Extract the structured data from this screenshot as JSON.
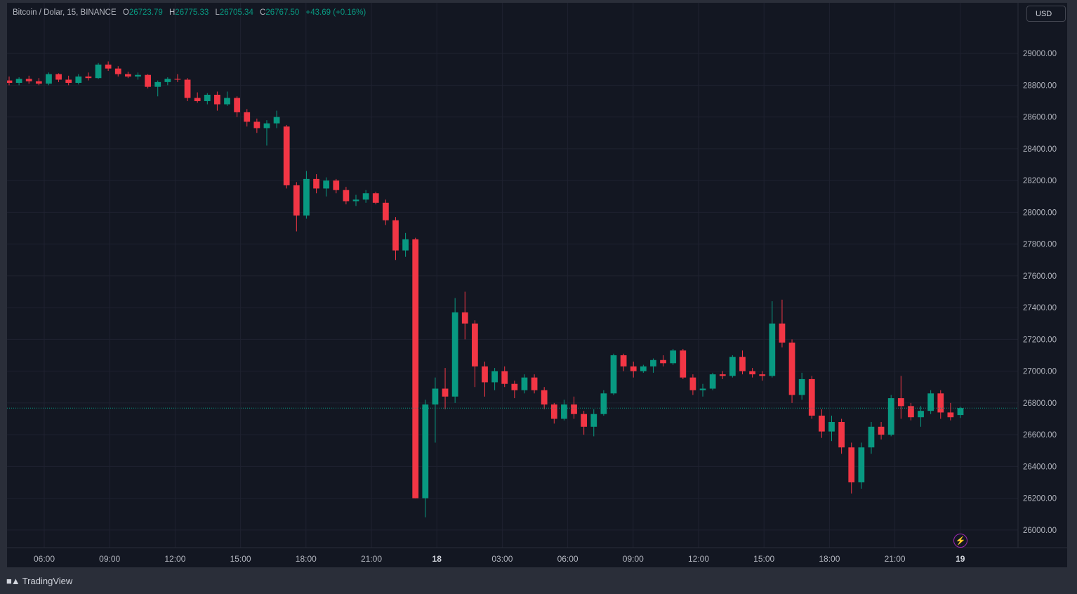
{
  "legend": {
    "symbol": "Bitcoin / Dolar, 15, BINANCE",
    "o_label": "O",
    "o_value": "26723.79",
    "h_label": "H",
    "h_value": "26775.33",
    "l_label": "L",
    "l_value": "26705.34",
    "c_label": "C",
    "c_value": "26767.50",
    "change": "+43.69 (+0.16%)"
  },
  "currency_button": "USD",
  "logo_text": "TradingView",
  "colors": {
    "up": "#089981",
    "down": "#f23645",
    "background": "#131722",
    "grid": "#1f2230",
    "axis_text": "#b2b5be"
  },
  "chart_data": {
    "type": "candlestick",
    "title": "Bitcoin / Dolar, 15, BINANCE",
    "interval": "15",
    "y_ticks": [
      "29000.00",
      "28800.00",
      "28600.00",
      "28400.00",
      "28200.00",
      "28000.00",
      "27800.00",
      "27600.00",
      "27400.00",
      "27200.00",
      "27000.00",
      "26800.00",
      "26600.00",
      "26400.00",
      "26200.00",
      "26000.00"
    ],
    "x_ticks": [
      "06:00",
      "09:00",
      "12:00",
      "15:00",
      "18:00",
      "21:00",
      "18",
      "03:00",
      "06:00",
      "09:00",
      "12:00",
      "15:00",
      "18:00",
      "21:00",
      "19"
    ],
    "ylim": [
      25820,
      29150
    ],
    "last_price": 26767.5,
    "grid": true,
    "candles": [
      {
        "t": "04:00",
        "o": 28830,
        "h": 28855,
        "l": 28800,
        "c": 28815
      },
      {
        "t": "04:30",
        "o": 28815,
        "h": 28850,
        "l": 28800,
        "c": 28840
      },
      {
        "t": "05:00",
        "o": 28840,
        "h": 28860,
        "l": 28810,
        "c": 28825
      },
      {
        "t": "05:30",
        "o": 28825,
        "h": 28845,
        "l": 28800,
        "c": 28810
      },
      {
        "t": "06:00",
        "o": 28810,
        "h": 28880,
        "l": 28800,
        "c": 28870
      },
      {
        "t": "06:30",
        "o": 28870,
        "h": 28875,
        "l": 28820,
        "c": 28835
      },
      {
        "t": "07:00",
        "o": 28835,
        "h": 28860,
        "l": 28800,
        "c": 28815
      },
      {
        "t": "07:30",
        "o": 28815,
        "h": 28870,
        "l": 28805,
        "c": 28855
      },
      {
        "t": "08:00",
        "o": 28855,
        "h": 28880,
        "l": 28830,
        "c": 28845
      },
      {
        "t": "08:30",
        "o": 28845,
        "h": 28940,
        "l": 28840,
        "c": 28930
      },
      {
        "t": "09:00",
        "o": 28930,
        "h": 28950,
        "l": 28890,
        "c": 28905
      },
      {
        "t": "09:30",
        "o": 28905,
        "h": 28920,
        "l": 28855,
        "c": 28870
      },
      {
        "t": "10:00",
        "o": 28870,
        "h": 28885,
        "l": 28845,
        "c": 28855
      },
      {
        "t": "10:30",
        "o": 28855,
        "h": 28880,
        "l": 28835,
        "c": 28865
      },
      {
        "t": "11:00",
        "o": 28865,
        "h": 28870,
        "l": 28780,
        "c": 28790
      },
      {
        "t": "11:30",
        "o": 28790,
        "h": 28830,
        "l": 28730,
        "c": 28820
      },
      {
        "t": "12:00",
        "o": 28820,
        "h": 28850,
        "l": 28800,
        "c": 28840
      },
      {
        "t": "12:30",
        "o": 28840,
        "h": 28870,
        "l": 28820,
        "c": 28835
      },
      {
        "t": "13:00",
        "o": 28835,
        "h": 28845,
        "l": 28700,
        "c": 28720
      },
      {
        "t": "13:30",
        "o": 28720,
        "h": 28755,
        "l": 28690,
        "c": 28700
      },
      {
        "t": "14:00",
        "o": 28700,
        "h": 28750,
        "l": 28680,
        "c": 28740
      },
      {
        "t": "14:30",
        "o": 28740,
        "h": 28760,
        "l": 28640,
        "c": 28680
      },
      {
        "t": "15:00",
        "o": 28680,
        "h": 28760,
        "l": 28670,
        "c": 28720
      },
      {
        "t": "15:30",
        "o": 28720,
        "h": 28730,
        "l": 28600,
        "c": 28630
      },
      {
        "t": "16:00",
        "o": 28630,
        "h": 28650,
        "l": 28540,
        "c": 28570
      },
      {
        "t": "16:30",
        "o": 28570,
        "h": 28590,
        "l": 28500,
        "c": 28530
      },
      {
        "t": "17:00",
        "o": 28530,
        "h": 28580,
        "l": 28420,
        "c": 28560
      },
      {
        "t": "17:30",
        "o": 28560,
        "h": 28640,
        "l": 28530,
        "c": 28600
      },
      {
        "t": "18:00",
        "o": 28540,
        "h": 28550,
        "l": 28150,
        "c": 28170
      },
      {
        "t": "18:30",
        "o": 28170,
        "h": 28190,
        "l": 27880,
        "c": 27980
      },
      {
        "t": "19:00",
        "o": 27980,
        "h": 28260,
        "l": 27960,
        "c": 28210
      },
      {
        "t": "19:30",
        "o": 28210,
        "h": 28240,
        "l": 28120,
        "c": 28150
      },
      {
        "t": "20:00",
        "o": 28150,
        "h": 28220,
        "l": 28100,
        "c": 28200
      },
      {
        "t": "20:30",
        "o": 28200,
        "h": 28210,
        "l": 28120,
        "c": 28140
      },
      {
        "t": "21:00",
        "o": 28140,
        "h": 28160,
        "l": 28050,
        "c": 28070
      },
      {
        "t": "21:30",
        "o": 28070,
        "h": 28110,
        "l": 28040,
        "c": 28080
      },
      {
        "t": "22:00",
        "o": 28080,
        "h": 28140,
        "l": 28060,
        "c": 28120
      },
      {
        "t": "22:30",
        "o": 28120,
        "h": 28130,
        "l": 28050,
        "c": 28060
      },
      {
        "t": "23:00",
        "o": 28060,
        "h": 28080,
        "l": 27920,
        "c": 27950
      },
      {
        "t": "23:30",
        "o": 27950,
        "h": 27970,
        "l": 27700,
        "c": 27760
      },
      {
        "t": "00:00",
        "o": 27760,
        "h": 27870,
        "l": 27720,
        "c": 27830
      },
      {
        "t": "00:15",
        "o": 27830,
        "h": 27840,
        "l": 26200,
        "c": 26200
      },
      {
        "t": "00:30",
        "o": 26200,
        "h": 26820,
        "l": 26080,
        "c": 26790
      },
      {
        "t": "01:00",
        "o": 26790,
        "h": 26960,
        "l": 26550,
        "c": 26890
      },
      {
        "t": "01:15",
        "o": 26890,
        "h": 27020,
        "l": 26760,
        "c": 26840
      },
      {
        "t": "01:30",
        "o": 26840,
        "h": 27460,
        "l": 26800,
        "c": 27370
      },
      {
        "t": "01:45",
        "o": 27370,
        "h": 27500,
        "l": 27200,
        "c": 27300
      },
      {
        "t": "02:00",
        "o": 27300,
        "h": 27320,
        "l": 26900,
        "c": 27030
      },
      {
        "t": "02:30",
        "o": 27030,
        "h": 27060,
        "l": 26840,
        "c": 26930
      },
      {
        "t": "03:00",
        "o": 26930,
        "h": 27020,
        "l": 26880,
        "c": 27000
      },
      {
        "t": "03:30",
        "o": 27000,
        "h": 27030,
        "l": 26900,
        "c": 26920
      },
      {
        "t": "04:00",
        "o": 26920,
        "h": 26940,
        "l": 26830,
        "c": 26880
      },
      {
        "t": "04:30",
        "o": 26880,
        "h": 26980,
        "l": 26860,
        "c": 26960
      },
      {
        "t": "05:00",
        "o": 26960,
        "h": 26980,
        "l": 26860,
        "c": 26880
      },
      {
        "t": "05:30",
        "o": 26880,
        "h": 26900,
        "l": 26760,
        "c": 26790
      },
      {
        "t": "06:00",
        "o": 26790,
        "h": 26800,
        "l": 26670,
        "c": 26700
      },
      {
        "t": "06:30",
        "o": 26700,
        "h": 26820,
        "l": 26690,
        "c": 26790
      },
      {
        "t": "07:00",
        "o": 26790,
        "h": 26840,
        "l": 26700,
        "c": 26730
      },
      {
        "t": "07:30",
        "o": 26730,
        "h": 26750,
        "l": 26600,
        "c": 26650
      },
      {
        "t": "08:00",
        "o": 26650,
        "h": 26760,
        "l": 26590,
        "c": 26730
      },
      {
        "t": "08:30",
        "o": 26730,
        "h": 26880,
        "l": 26720,
        "c": 26860
      },
      {
        "t": "09:00",
        "o": 26860,
        "h": 27110,
        "l": 26850,
        "c": 27100
      },
      {
        "t": "09:30",
        "o": 27100,
        "h": 27110,
        "l": 27000,
        "c": 27030
      },
      {
        "t": "10:00",
        "o": 27030,
        "h": 27060,
        "l": 26960,
        "c": 27000
      },
      {
        "t": "10:30",
        "o": 27000,
        "h": 27040,
        "l": 26990,
        "c": 27030
      },
      {
        "t": "11:00",
        "o": 27030,
        "h": 27080,
        "l": 26990,
        "c": 27070
      },
      {
        "t": "11:30",
        "o": 27070,
        "h": 27100,
        "l": 27030,
        "c": 27050
      },
      {
        "t": "12:00",
        "o": 27050,
        "h": 27140,
        "l": 27040,
        "c": 27130
      },
      {
        "t": "12:30",
        "o": 27130,
        "h": 27140,
        "l": 26950,
        "c": 26960
      },
      {
        "t": "13:00",
        "o": 26960,
        "h": 26980,
        "l": 26850,
        "c": 26880
      },
      {
        "t": "13:30",
        "o": 26880,
        "h": 26920,
        "l": 26840,
        "c": 26890
      },
      {
        "t": "14:00",
        "o": 26890,
        "h": 26990,
        "l": 26880,
        "c": 26980
      },
      {
        "t": "14:30",
        "o": 26980,
        "h": 27000,
        "l": 26950,
        "c": 26970
      },
      {
        "t": "15:00",
        "o": 26970,
        "h": 27100,
        "l": 26960,
        "c": 27090
      },
      {
        "t": "15:30",
        "o": 27090,
        "h": 27130,
        "l": 26980,
        "c": 27000
      },
      {
        "t": "16:00",
        "o": 27000,
        "h": 27020,
        "l": 26960,
        "c": 26980
      },
      {
        "t": "16:30",
        "o": 26980,
        "h": 27000,
        "l": 26940,
        "c": 26970
      },
      {
        "t": "17:00",
        "o": 26970,
        "h": 27440,
        "l": 26960,
        "c": 27300
      },
      {
        "t": "17:15",
        "o": 27300,
        "h": 27450,
        "l": 27150,
        "c": 27180
      },
      {
        "t": "17:30",
        "o": 27180,
        "h": 27200,
        "l": 26800,
        "c": 26850
      },
      {
        "t": "18:00",
        "o": 26850,
        "h": 26990,
        "l": 26820,
        "c": 26950
      },
      {
        "t": "18:30",
        "o": 26950,
        "h": 26970,
        "l": 26700,
        "c": 26720
      },
      {
        "t": "19:00",
        "o": 26720,
        "h": 26760,
        "l": 26580,
        "c": 26620
      },
      {
        "t": "19:30",
        "o": 26620,
        "h": 26720,
        "l": 26560,
        "c": 26680
      },
      {
        "t": "20:00",
        "o": 26680,
        "h": 26700,
        "l": 26480,
        "c": 26520
      },
      {
        "t": "20:30",
        "o": 26520,
        "h": 26550,
        "l": 26230,
        "c": 26300
      },
      {
        "t": "21:00",
        "o": 26300,
        "h": 26550,
        "l": 26260,
        "c": 26520
      },
      {
        "t": "21:30",
        "o": 26520,
        "h": 26680,
        "l": 26480,
        "c": 26650
      },
      {
        "t": "22:00",
        "o": 26650,
        "h": 26680,
        "l": 26570,
        "c": 26600
      },
      {
        "t": "22:30",
        "o": 26600,
        "h": 26850,
        "l": 26590,
        "c": 26830
      },
      {
        "t": "23:00",
        "o": 26830,
        "h": 26970,
        "l": 26700,
        "c": 26780
      },
      {
        "t": "23:30",
        "o": 26780,
        "h": 26800,
        "l": 26690,
        "c": 26710
      },
      {
        "t": "00:00",
        "o": 26710,
        "h": 26780,
        "l": 26650,
        "c": 26750
      },
      {
        "t": "00:30",
        "o": 26750,
        "h": 26880,
        "l": 26730,
        "c": 26860
      },
      {
        "t": "01:00",
        "o": 26860,
        "h": 26880,
        "l": 26700,
        "c": 26740
      },
      {
        "t": "01:30",
        "o": 26740,
        "h": 26800,
        "l": 26690,
        "c": 26710
      },
      {
        "t": "02:00",
        "o": 26723.79,
        "h": 26775.33,
        "l": 26705.34,
        "c": 26767.5
      }
    ]
  }
}
